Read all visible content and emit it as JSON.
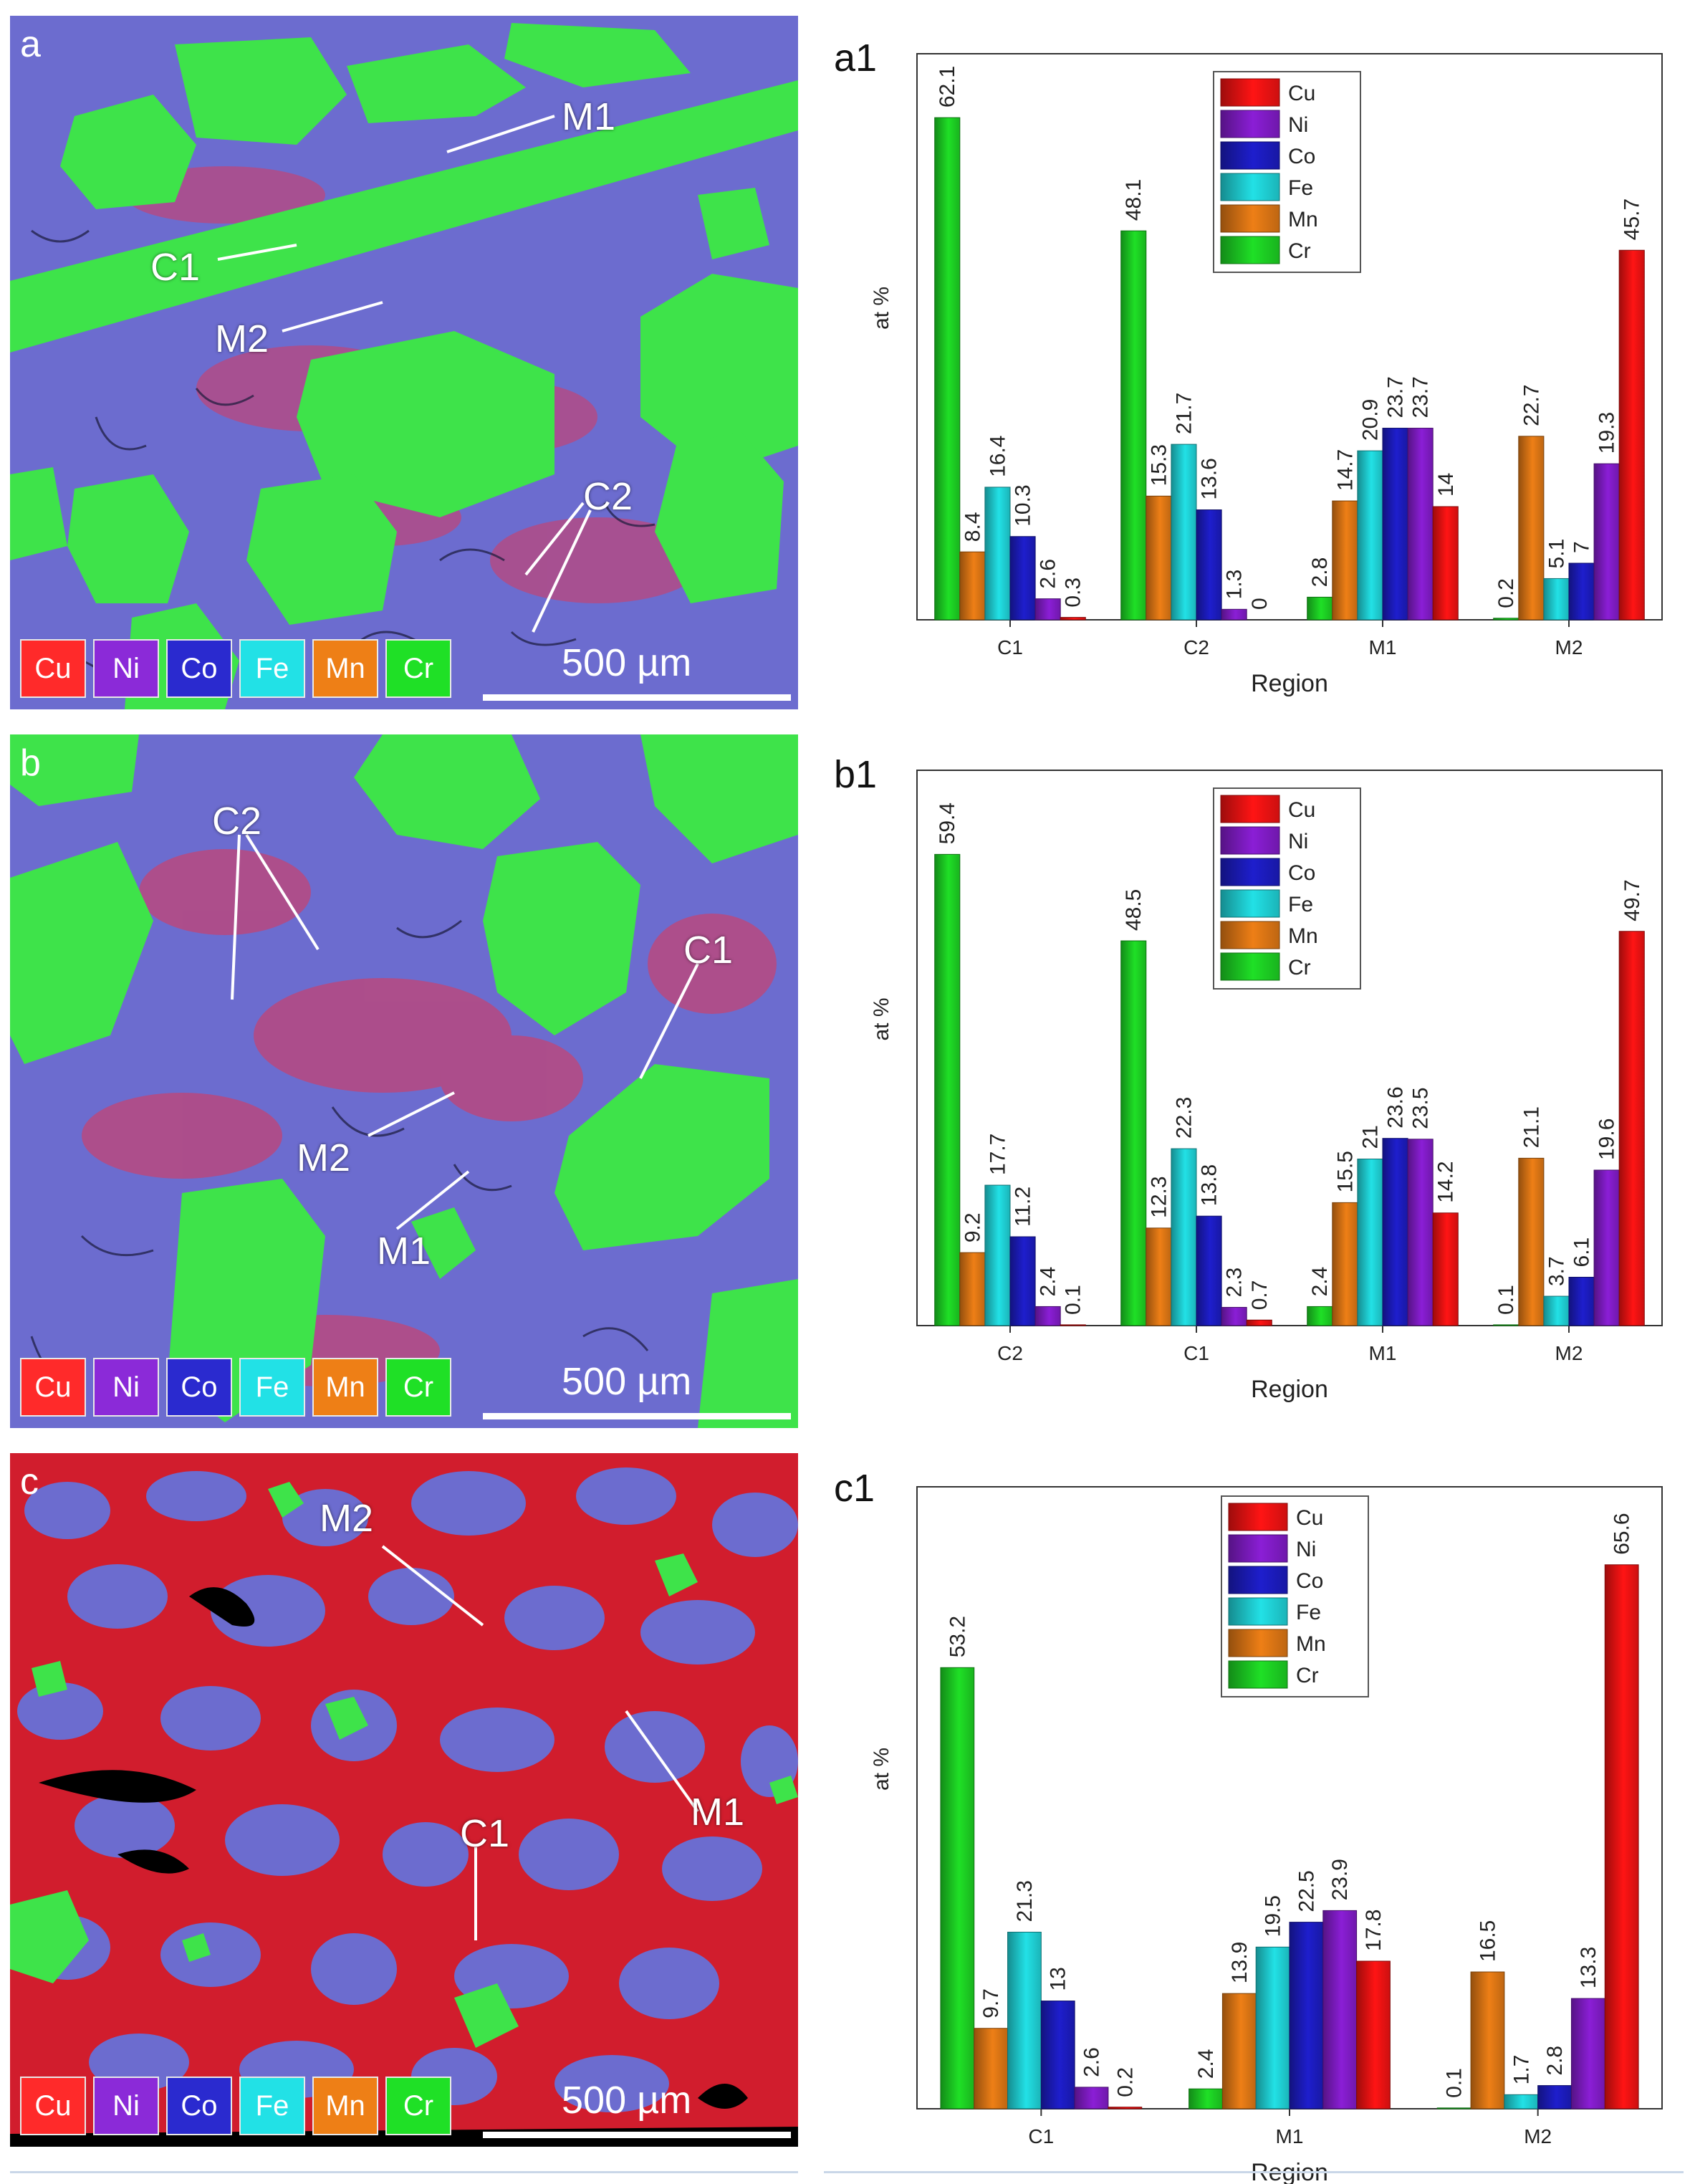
{
  "element_colors": {
    "Cu": "#ff1414",
    "Ni": "#8b1ed6",
    "Co": "#1e1ecd",
    "Fe": "#22e1e6",
    "Mn": "#ee7f16",
    "Cr": "#1fe026"
  },
  "element_order": [
    "Cu",
    "Ni",
    "Co",
    "Fe",
    "Mn",
    "Cr"
  ],
  "scale_bar": "500 µm",
  "maps": [
    {
      "letter": "a",
      "labels": [
        "M1",
        "C1",
        "M2",
        "C2"
      ]
    },
    {
      "letter": "b",
      "labels": [
        "C2",
        "C1",
        "M2",
        "M1"
      ]
    },
    {
      "letter": "c",
      "labels": [
        "M2",
        "M1",
        "C1"
      ]
    }
  ],
  "chart_data": [
    {
      "type": "bar",
      "title": "a1",
      "xlabel": "Region",
      "ylabel": "at %",
      "ylim": [
        0,
        70
      ],
      "categories": [
        "C1",
        "C2",
        "M1",
        "M2"
      ],
      "series": [
        {
          "name": "Cr",
          "values": [
            62.1,
            48.1,
            2.8,
            0.2
          ]
        },
        {
          "name": "Mn",
          "values": [
            8.4,
            15.3,
            14.7,
            22.7
          ]
        },
        {
          "name": "Fe",
          "values": [
            16.4,
            21.7,
            20.9,
            5.1
          ]
        },
        {
          "name": "Co",
          "values": [
            10.3,
            13.6,
            23.7,
            7
          ]
        },
        {
          "name": "Ni",
          "values": [
            2.6,
            1.3,
            23.7,
            19.3
          ]
        },
        {
          "name": "Cu",
          "values": [
            0.3,
            0,
            14,
            45.7
          ]
        }
      ],
      "labels": [
        [
          "62.1",
          "8.4",
          "16.4",
          "10.3",
          "2.6",
          "0.3"
        ],
        [
          "48.1",
          "15.3",
          "21.7",
          "13.6",
          "1.3",
          "0"
        ],
        [
          "2.8",
          "14.7",
          "20.9",
          "23.7",
          "23.7",
          "14"
        ],
        [
          "0.2",
          "22.7",
          "5.1",
          "7",
          "19.3",
          "45.7"
        ]
      ]
    },
    {
      "type": "bar",
      "title": "b1",
      "xlabel": "Region",
      "ylabel": "at %",
      "ylim": [
        0,
        70
      ],
      "categories": [
        "C2",
        "C1",
        "M1",
        "M2"
      ],
      "series": [
        {
          "name": "Cr",
          "values": [
            59.4,
            48.5,
            2.4,
            0.1
          ]
        },
        {
          "name": "Mn",
          "values": [
            9.2,
            12.3,
            15.5,
            21.1
          ]
        },
        {
          "name": "Fe",
          "values": [
            17.7,
            22.3,
            21,
            3.7
          ]
        },
        {
          "name": "Co",
          "values": [
            11.2,
            13.8,
            23.6,
            6.1
          ]
        },
        {
          "name": "Ni",
          "values": [
            2.4,
            2.3,
            23.5,
            19.6
          ]
        },
        {
          "name": "Cu",
          "values": [
            0.1,
            0.7,
            14.2,
            49.7
          ]
        }
      ],
      "labels": [
        [
          "59.4",
          "9.2",
          "17.7",
          "11.2",
          "2.4",
          "0.1"
        ],
        [
          "48.5",
          "12.3",
          "22.3",
          "13.8",
          "2.3",
          "0.7"
        ],
        [
          "2.4",
          "15.5",
          "21",
          "23.6",
          "23.5",
          "14.2"
        ],
        [
          "0.1",
          "21.1",
          "3.7",
          "6.1",
          "19.6",
          "49.7"
        ]
      ]
    },
    {
      "type": "bar",
      "title": "c1",
      "xlabel": "Region",
      "ylabel": "at %",
      "ylim": [
        0,
        75
      ],
      "categories": [
        "C1",
        "M1",
        "M2"
      ],
      "series": [
        {
          "name": "Cr",
          "values": [
            53.2,
            2.4,
            0.1
          ]
        },
        {
          "name": "Mn",
          "values": [
            9.7,
            13.9,
            16.5
          ]
        },
        {
          "name": "Fe",
          "values": [
            21.3,
            19.5,
            1.7
          ]
        },
        {
          "name": "Co",
          "values": [
            13,
            22.5,
            2.8
          ]
        },
        {
          "name": "Ni",
          "values": [
            2.6,
            23.9,
            13.3
          ]
        },
        {
          "name": "Cu",
          "values": [
            0.2,
            17.8,
            65.6
          ]
        }
      ],
      "labels": [
        [
          "53.2",
          "9.7",
          "21.3",
          "13",
          "2.6",
          "0.2"
        ],
        [
          "2.4",
          "13.9",
          "19.5",
          "22.5",
          "23.9",
          "17.8"
        ],
        [
          "0.1",
          "16.5",
          "1.7",
          "2.8",
          "13.3",
          "65.6"
        ]
      ]
    }
  ]
}
